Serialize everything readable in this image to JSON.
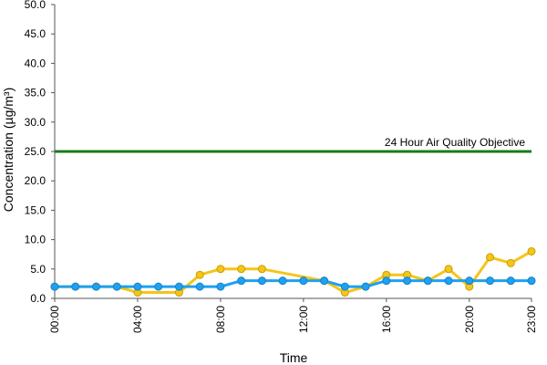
{
  "chart_data": {
    "type": "line",
    "title": "",
    "xlabel": "Time",
    "ylabel": "Concentration (µg/m³)",
    "ylim": [
      0,
      50
    ],
    "y_ticks": [
      "0.0",
      "5.0",
      "10.0",
      "15.0",
      "20.0",
      "25.0",
      "30.0",
      "35.0",
      "40.0",
      "45.0",
      "50.0"
    ],
    "x_ticks": [
      "00:00",
      "04:00",
      "08:00",
      "12:00",
      "16:00",
      "20:00",
      "23:00"
    ],
    "x_tick_hours": [
      0,
      4,
      8,
      12,
      16,
      20,
      23
    ],
    "x": [
      "00:00",
      "01:00",
      "02:00",
      "03:00",
      "04:00",
      "05:00",
      "06:00",
      "07:00",
      "08:00",
      "09:00",
      "10:00",
      "11:00",
      "12:00",
      "13:00",
      "14:00",
      "15:00",
      "16:00",
      "17:00",
      "18:00",
      "19:00",
      "20:00",
      "21:00",
      "22:00",
      "23:00"
    ],
    "series": [
      {
        "color": "#f5c518",
        "values": [
          2,
          2,
          2,
          2,
          1,
          null,
          1,
          4,
          5,
          5,
          5,
          null,
          null,
          3,
          1,
          2,
          4,
          4,
          3,
          5,
          2,
          7,
          6,
          8
        ]
      },
      {
        "color": "#1ea1f0",
        "values": [
          2,
          2,
          2,
          2,
          2,
          2,
          2,
          2,
          2,
          3,
          3,
          3,
          3,
          3,
          2,
          2,
          3,
          3,
          3,
          3,
          3,
          3,
          3,
          3
        ]
      }
    ],
    "reference_line": {
      "value": 25,
      "label": "24 Hour Air Quality Objective",
      "color": "#1a7a1a"
    },
    "grid": false,
    "legend": "none"
  }
}
